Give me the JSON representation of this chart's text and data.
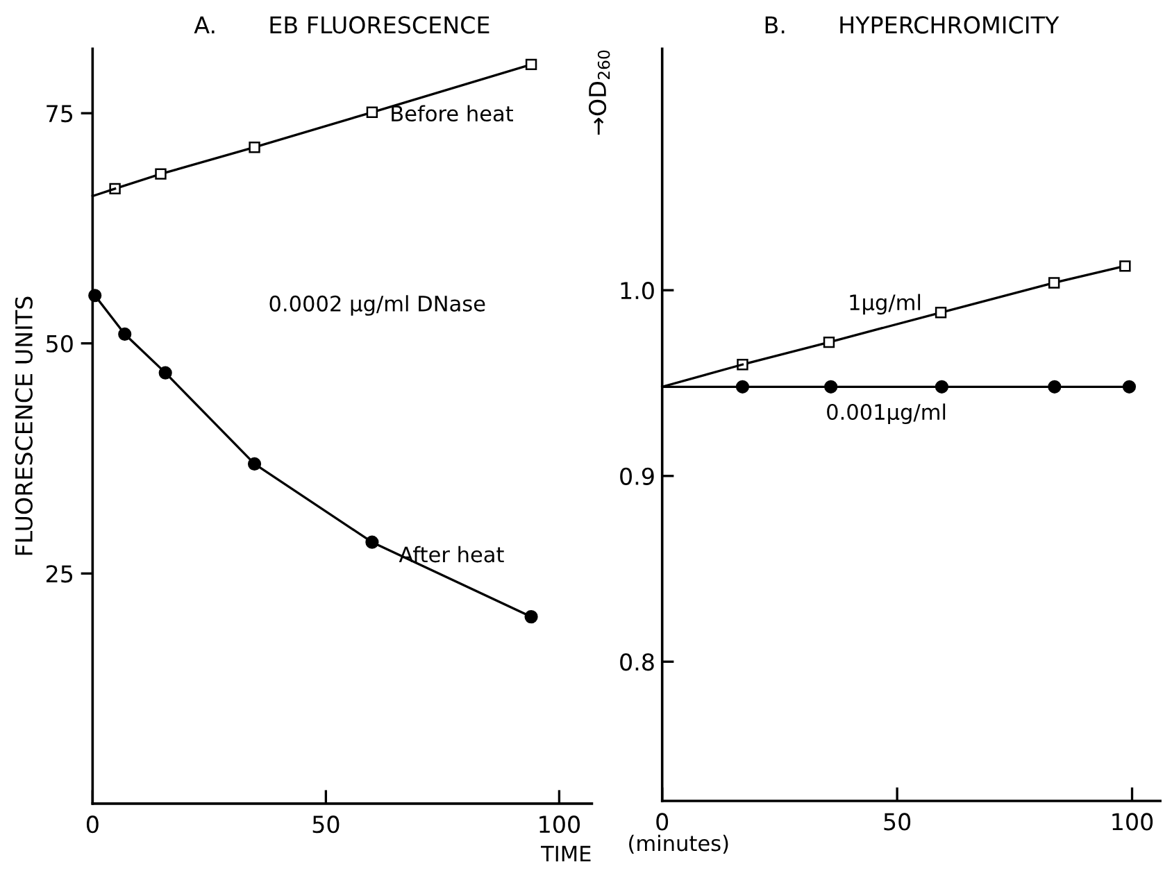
{
  "chart_data": [
    {
      "type": "line",
      "title": "A.       EB FLUORESCENCE",
      "xlabel": "TIME",
      "ylabel": "FLUORESCENCE UNITS",
      "xlim": [
        0,
        107
      ],
      "xticks": [
        0,
        50,
        100
      ],
      "ylim": [
        0,
        82
      ],
      "yticks": [
        25,
        50,
        75
      ],
      "grid": false,
      "legend": false,
      "series": [
        {
          "name": "Before heat",
          "color": "#000000",
          "marker": "square",
          "x": [
            4.8,
            14.6,
            34.7,
            59.9,
            94.0
          ],
          "values": [
            66.8,
            68.4,
            71.3,
            75.1,
            80.3
          ]
        },
        {
          "name": "After heat",
          "color": "#000000",
          "marker": "circle",
          "x": [
            0.5,
            6.9,
            15.6,
            34.7,
            59.9,
            94.0
          ],
          "values": [
            55.2,
            51.0,
            46.8,
            36.9,
            28.4,
            20.3
          ]
        },
        {
          "color": "#000000",
          "marker": "none",
          "x": [
            0,
            4.8
          ],
          "values": [
            66.0,
            66.8
          ]
        }
      ],
      "annotations": [
        "0.0002 µg/ml DNase"
      ]
    },
    {
      "type": "line",
      "title": "B.       HYPERCHROMICITY",
      "xlabel": "(minutes)",
      "ylabel": "→OD$_{260}$",
      "xlim": [
        0,
        106
      ],
      "xticks": [
        0,
        50,
        100
      ],
      "ylim": [
        0.725,
        1.13
      ],
      "yticks": [
        0.8,
        0.9,
        {
          "value": 1,
          "label": "1.0"
        }
      ],
      "grid": false,
      "legend": false,
      "series": [
        {
          "name": "1µg/ml",
          "color": "#000000",
          "marker": "square",
          "x": [
            17.1,
            35.5,
            59.3,
            83.4,
            98.5
          ],
          "values": [
            0.96,
            0.972,
            0.988,
            1.004,
            1.013
          ]
        },
        {
          "name": "0.001µg/ml",
          "color": "#000000",
          "marker": "circle",
          "x": [
            17.1,
            35.9,
            59.5,
            83.5,
            99.4
          ],
          "values": [
            0.948,
            0.948,
            0.948,
            0.948,
            0.948
          ]
        },
        {
          "color": "#000000",
          "marker": "none",
          "x": [
            0,
            17.1
          ],
          "values": [
            0.948,
            0.96
          ]
        },
        {
          "color": "#000000",
          "marker": "none",
          "x": [
            0,
            17.1
          ],
          "values": [
            0.948,
            0.948
          ]
        }
      ]
    }
  ]
}
